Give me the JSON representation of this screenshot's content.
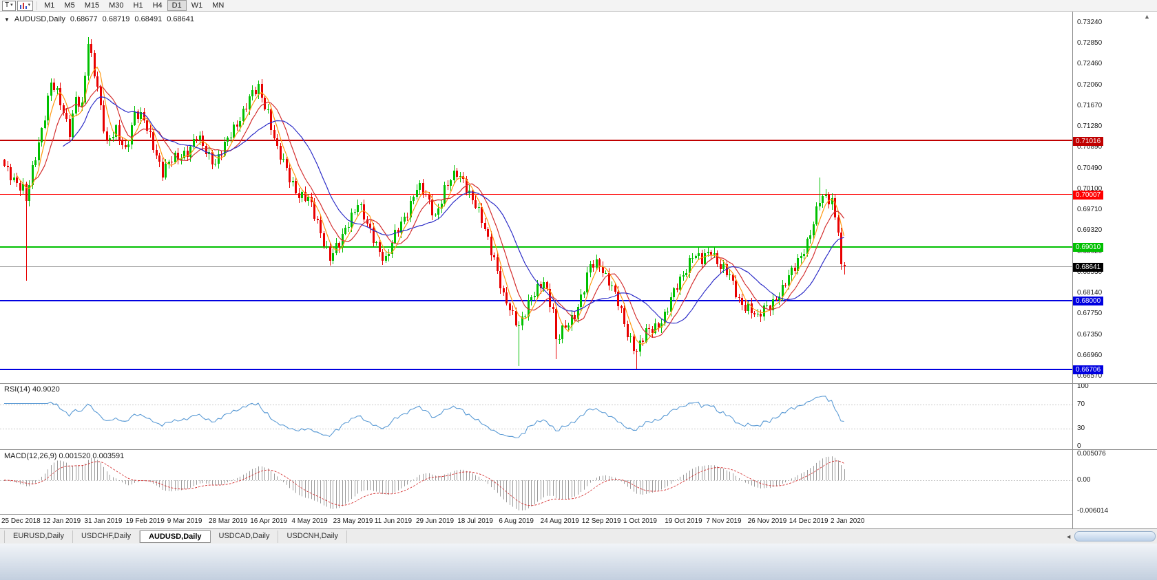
{
  "icons": {
    "caret_down": "▾",
    "collapse": "▼",
    "scroll_up": "▲",
    "tab_scroll_left": "◄"
  },
  "toolbar": {
    "tool_label": "T",
    "timeframes": [
      {
        "label": "M1",
        "active": false
      },
      {
        "label": "M5",
        "active": false
      },
      {
        "label": "M15",
        "active": false
      },
      {
        "label": "M30",
        "active": false
      },
      {
        "label": "H1",
        "active": false
      },
      {
        "label": "H4",
        "active": false
      },
      {
        "label": "D1",
        "active": true
      },
      {
        "label": "W1",
        "active": false
      },
      {
        "label": "MN",
        "active": false
      }
    ]
  },
  "chart": {
    "title": "AUDUSD,Daily",
    "ohlc": {
      "open": "0.68677",
      "high": "0.68719",
      "low": "0.68491",
      "close": "0.68641"
    }
  },
  "indicators": {
    "rsi": {
      "label_text": "RSI(14) 40.9020",
      "axis_labels": [
        "100",
        "70",
        "30",
        "0"
      ]
    },
    "macd": {
      "label_text": "MACD(12,26,9) 0.001520 0.003591",
      "axis_labels": [
        "0.005076",
        "0.00",
        "-0.006014"
      ]
    }
  },
  "tabs": [
    {
      "label": "EURUSD,Daily",
      "active": false
    },
    {
      "label": "USDCHF,Daily",
      "active": false
    },
    {
      "label": "AUDUSD,Daily",
      "active": true
    },
    {
      "label": "USDCAD,Daily",
      "active": false
    },
    {
      "label": "USDCNH,Daily",
      "active": false
    }
  ],
  "chart_data": {
    "type": "candlestick",
    "symbol": "AUDUSD",
    "timeframe": "Daily",
    "title": "AUDUSD,Daily",
    "current_ohlc": {
      "open": 0.68677,
      "high": 0.68719,
      "low": 0.68491,
      "close": 0.68641
    },
    "bars": 272,
    "y_axis": {
      "top_price": 0.7342,
      "bottom_price": 0.6648,
      "tick_labels": [
        "0.73240",
        "0.72850",
        "0.72460",
        "0.72060",
        "0.71670",
        "0.71280",
        "0.70890",
        "0.70490",
        "0.70100",
        "0.69710",
        "0.69320",
        "0.68920",
        "0.68530",
        "0.68140",
        "0.67750",
        "0.67350",
        "0.66960",
        "0.66570"
      ]
    },
    "x_date_labels": [
      "25 Dec 2018",
      "12 Jan 2019",
      "31 Jan 2019",
      "19 Feb 2019",
      "9 Mar 2019",
      "28 Mar 2019",
      "16 Apr 2019",
      "4 May 2019",
      "23 May 2019",
      "11 Jun 2019",
      "29 Jun 2019",
      "18 Jul 2019",
      "6 Aug 2019",
      "24 Aug 2019",
      "12 Sep 2019",
      "1 Oct 2019",
      "19 Oct 2019",
      "7 Nov 2019",
      "26 Nov 2019",
      "14 Dec 2019",
      "2 Jan 2020"
    ],
    "close_anchors": [
      [
        0,
        0.7048
      ],
      [
        3,
        0.7032
      ],
      [
        6,
        0.7012
      ],
      [
        7,
        0.6988
      ],
      [
        9,
        0.7042
      ],
      [
        12,
        0.7125
      ],
      [
        15,
        0.7212
      ],
      [
        17,
        0.7186
      ],
      [
        19,
        0.7152
      ],
      [
        21,
        0.7122
      ],
      [
        23,
        0.7186
      ],
      [
        25,
        0.7162
      ],
      [
        27,
        0.7282
      ],
      [
        28,
        0.7256
      ],
      [
        30,
        0.7206
      ],
      [
        33,
        0.7096
      ],
      [
        36,
        0.7116
      ],
      [
        39,
        0.7086
      ],
      [
        42,
        0.7154
      ],
      [
        45,
        0.7136
      ],
      [
        48,
        0.7096
      ],
      [
        51,
        0.7042
      ],
      [
        54,
        0.7062
      ],
      [
        57,
        0.7076
      ],
      [
        60,
        0.7088
      ],
      [
        62,
        0.7106
      ],
      [
        65,
        0.7082
      ],
      [
        68,
        0.7062
      ],
      [
        71,
        0.7088
      ],
      [
        75,
        0.7136
      ],
      [
        79,
        0.718
      ],
      [
        82,
        0.7198
      ],
      [
        85,
        0.7158
      ],
      [
        88,
        0.7082
      ],
      [
        92,
        0.7032
      ],
      [
        95,
        0.7002
      ],
      [
        98,
        0.6988
      ],
      [
        102,
        0.6932
      ],
      [
        105,
        0.6882
      ],
      [
        108,
        0.6902
      ],
      [
        111,
        0.6952
      ],
      [
        114,
        0.6986
      ],
      [
        117,
        0.6938
      ],
      [
        120,
        0.6908
      ],
      [
        123,
        0.6876
      ],
      [
        126,
        0.692
      ],
      [
        130,
        0.6972
      ],
      [
        133,
        0.7012
      ],
      [
        136,
        0.6996
      ],
      [
        139,
        0.6962
      ],
      [
        142,
        0.7006
      ],
      [
        146,
        0.7042
      ],
      [
        148,
        0.703
      ],
      [
        151,
        0.6988
      ],
      [
        155,
        0.6936
      ],
      [
        158,
        0.6882
      ],
      [
        161,
        0.6802
      ],
      [
        164,
        0.6772
      ],
      [
        166,
        0.6758
      ],
      [
        169,
        0.6792
      ],
      [
        172,
        0.6818
      ],
      [
        174,
        0.684
      ],
      [
        177,
        0.6782
      ],
      [
        178,
        0.6722
      ],
      [
        181,
        0.6748
      ],
      [
        184,
        0.6778
      ],
      [
        187,
        0.6822
      ],
      [
        189,
        0.6862
      ],
      [
        192,
        0.6872
      ],
      [
        195,
        0.6838
      ],
      [
        198,
        0.6792
      ],
      [
        201,
        0.674
      ],
      [
        204,
        0.6706
      ],
      [
        207,
        0.6736
      ],
      [
        210,
        0.6752
      ],
      [
        213,
        0.6772
      ],
      [
        216,
        0.6812
      ],
      [
        219,
        0.6852
      ],
      [
        222,
        0.6888
      ],
      [
        225,
        0.6872
      ],
      [
        228,
        0.6898
      ],
      [
        231,
        0.6866
      ],
      [
        234,
        0.6842
      ],
      [
        237,
        0.6802
      ],
      [
        240,
        0.6788
      ],
      [
        243,
        0.6762
      ],
      [
        245,
        0.6786
      ],
      [
        248,
        0.68
      ],
      [
        251,
        0.6816
      ],
      [
        254,
        0.6856
      ],
      [
        256,
        0.688
      ],
      [
        259,
        0.6906
      ],
      [
        261,
        0.694
      ],
      [
        263,
        0.6992
      ],
      [
        265,
        0.7002
      ],
      [
        267,
        0.6988
      ],
      [
        268,
        0.6956
      ],
      [
        269,
        0.6928
      ],
      [
        270,
        0.6868
      ],
      [
        271,
        0.68641
      ]
    ],
    "wick_overrides": [
      {
        "index": 7,
        "low": 0.6838
      },
      {
        "index": 27,
        "high": 0.7296
      },
      {
        "index": 166,
        "low": 0.6677
      },
      {
        "index": 178,
        "low": 0.6689
      },
      {
        "index": 204,
        "low": 0.6671
      },
      {
        "index": 263,
        "high": 0.7032
      }
    ],
    "horizontal_levels": [
      {
        "price": 0.71016,
        "label": "0.71016",
        "color": "#C00000",
        "line_width": 2
      },
      {
        "price": 0.70007,
        "label": "0.70007",
        "color": "#FF0000",
        "line_width": 1
      },
      {
        "price": 0.6901,
        "label": "0.69010",
        "color": "#00C000",
        "line_width": 2
      },
      {
        "price": 0.68,
        "label": "0.68000",
        "color": "#0000E0",
        "line_width": 2
      },
      {
        "price": 0.66706,
        "label": "0.66706",
        "color": "#0000E0",
        "line_width": 2
      }
    ],
    "current_price": {
      "value": 0.68641,
      "label": "0.68641",
      "badge_color": "#000000",
      "line_color": "#A8A8A8"
    },
    "candle_colors": {
      "up": "#00C000",
      "down": "#E80000"
    },
    "moving_averages": [
      {
        "period": 5,
        "color": "#FF9912"
      },
      {
        "period": 10,
        "color": "#D43030"
      },
      {
        "period": 20,
        "color": "#2E2EC8"
      }
    ],
    "rsi": {
      "period": 14,
      "current_value": 40.902,
      "line_color": "#5B9BD5",
      "guide_levels": [
        70,
        30
      ],
      "range": [
        0,
        100
      ]
    },
    "macd": {
      "fast": 12,
      "slow": 26,
      "signal_period": 9,
      "main_value": 0.00152,
      "signal_value": 0.003591,
      "histogram_color": "#9A9A9A",
      "signal_color": "#D43030",
      "range": [
        -0.006014,
        0.005076
      ]
    }
  }
}
